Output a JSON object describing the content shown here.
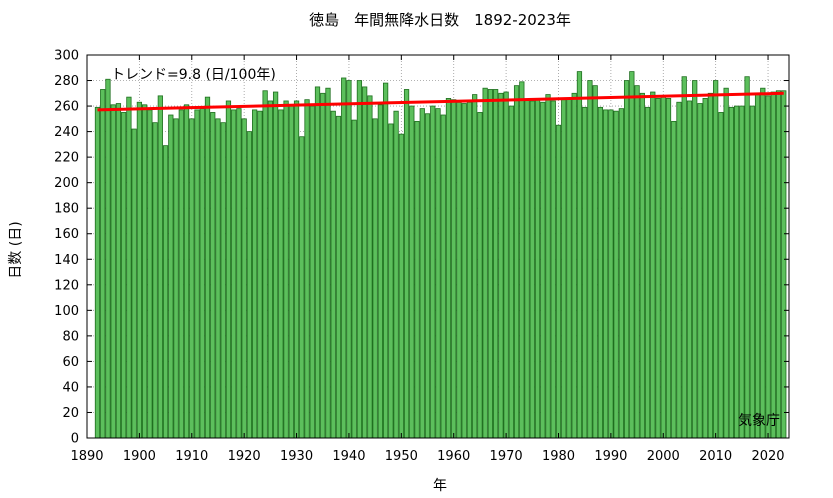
{
  "chart_data": {
    "type": "bar",
    "title": "徳島　年間無降水日数　1892-2023年",
    "xlabel": "年",
    "ylabel": "日数 (日)",
    "annotation": "トレンド=9.8 (日/100年)",
    "credit": "気象庁",
    "xlim": [
      1890,
      2024
    ],
    "ylim": [
      0,
      300
    ],
    "xticks": [
      1890,
      1900,
      1910,
      1920,
      1930,
      1940,
      1950,
      1960,
      1970,
      1980,
      1990,
      2000,
      2010,
      2020
    ],
    "yticks": [
      0,
      20,
      40,
      60,
      80,
      100,
      120,
      140,
      160,
      180,
      200,
      220,
      240,
      260,
      280,
      300
    ],
    "grid": true,
    "bar_color": "#5cbf5c",
    "bar_edge_color": "#1e6e1e",
    "trend_color": "#ff0000",
    "trend": {
      "x": [
        1892,
        2023
      ],
      "y": [
        257,
        270
      ]
    },
    "x": [
      1892,
      1893,
      1894,
      1895,
      1896,
      1897,
      1898,
      1899,
      1900,
      1901,
      1902,
      1903,
      1904,
      1905,
      1906,
      1907,
      1908,
      1909,
      1910,
      1911,
      1912,
      1913,
      1914,
      1915,
      1916,
      1917,
      1918,
      1919,
      1920,
      1921,
      1922,
      1923,
      1924,
      1925,
      1926,
      1927,
      1928,
      1929,
      1930,
      1931,
      1932,
      1933,
      1934,
      1935,
      1936,
      1937,
      1938,
      1939,
      1940,
      1941,
      1942,
      1943,
      1944,
      1945,
      1946,
      1947,
      1948,
      1949,
      1950,
      1951,
      1952,
      1953,
      1954,
      1955,
      1956,
      1957,
      1958,
      1959,
      1960,
      1961,
      1962,
      1963,
      1964,
      1965,
      1966,
      1967,
      1968,
      1969,
      1970,
      1971,
      1972,
      1973,
      1974,
      1975,
      1976,
      1977,
      1978,
      1979,
      1980,
      1981,
      1982,
      1983,
      1984,
      1985,
      1986,
      1987,
      1988,
      1989,
      1990,
      1991,
      1992,
      1993,
      1994,
      1995,
      1996,
      1997,
      1998,
      1999,
      2000,
      2001,
      2002,
      2003,
      2004,
      2005,
      2006,
      2007,
      2008,
      2009,
      2010,
      2011,
      2012,
      2013,
      2014,
      2015,
      2016,
      2017,
      2018,
      2019,
      2020,
      2021,
      2022,
      2023
    ],
    "values": [
      259,
      273,
      281,
      261,
      262,
      255,
      267,
      242,
      263,
      261,
      257,
      247,
      268,
      229,
      253,
      250,
      257,
      261,
      250,
      257,
      258,
      267,
      255,
      250,
      247,
      264,
      257,
      258,
      250,
      240,
      257,
      256,
      272,
      264,
      271,
      257,
      264,
      260,
      264,
      236,
      265,
      260,
      275,
      270,
      274,
      256,
      252,
      282,
      280,
      249,
      280,
      275,
      268,
      250,
      261,
      278,
      246,
      256,
      238,
      273,
      260,
      248,
      258,
      254,
      260,
      258,
      253,
      266,
      265,
      263,
      262,
      263,
      269,
      255,
      274,
      273,
      273,
      270,
      271,
      260,
      276,
      279,
      265,
      264,
      265,
      263,
      269,
      264,
      245,
      265,
      266,
      270,
      287,
      259,
      280,
      276,
      259,
      257,
      257,
      256,
      258,
      280,
      287,
      276,
      270,
      259,
      271,
      266,
      268,
      266,
      248,
      263,
      283,
      264,
      280,
      262,
      266,
      270,
      280,
      255,
      274,
      259,
      260,
      260,
      283,
      260,
      270,
      274,
      268,
      271,
      272,
      272
    ]
  }
}
